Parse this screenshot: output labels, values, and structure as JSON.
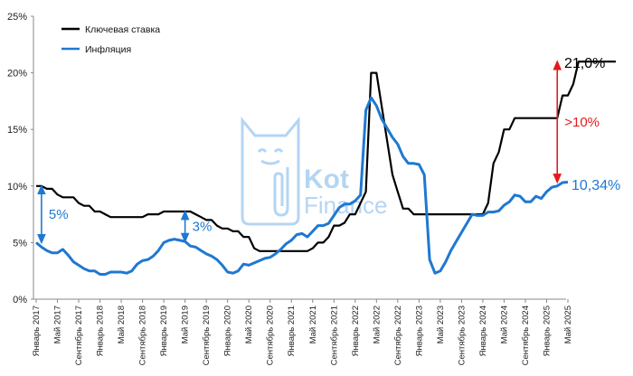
{
  "chart_data": {
    "type": "line",
    "ylim": [
      0,
      25
    ],
    "yticks": [
      "0%",
      "5%",
      "10%",
      "15%",
      "20%",
      "25%"
    ],
    "grid": false,
    "legend": "top-left",
    "x_tick_labels": [
      "Январь 2017",
      "Май 2017",
      "Сентябрь 2017",
      "Январь 2018",
      "Май 2018",
      "Сентябрь 2018",
      "Январь 2019",
      "Май 2019",
      "Сентябрь 2019",
      "Январь 2020",
      "Май 2020",
      "Сентябрь 2020",
      "Январь 2021",
      "Май 2021",
      "Сентябрь 2021",
      "Январь 2022",
      "Май 2022",
      "Сентябрь 2022",
      "Январь 2023",
      "Май 2023",
      "Сентябрь 2023",
      "Январь 2024",
      "Май 2024",
      "Сентябрь 2024",
      "Январь 2025",
      "Май 2025"
    ],
    "x_start": "2017-01",
    "series": [
      {
        "name": "Ключевая ставка",
        "color": "#000000",
        "values": [
          10,
          10,
          9.75,
          9.75,
          9.25,
          9,
          9,
          9,
          8.5,
          8.25,
          8.25,
          7.75,
          7.75,
          7.5,
          7.25,
          7.25,
          7.25,
          7.25,
          7.25,
          7.25,
          7.25,
          7.5,
          7.5,
          7.5,
          7.75,
          7.75,
          7.75,
          7.75,
          7.75,
          7.75,
          7.5,
          7.25,
          7,
          7,
          6.5,
          6.25,
          6.25,
          6,
          6,
          5.5,
          5.5,
          4.5,
          4.25,
          4.25,
          4.25,
          4.25,
          4.25,
          4.25,
          4.25,
          4.25,
          4.25,
          4.25,
          4.5,
          5,
          5,
          5.5,
          6.5,
          6.5,
          6.75,
          7.5,
          7.5,
          8.5,
          9.5,
          20,
          20,
          17,
          14,
          11,
          9.5,
          8,
          8,
          7.5,
          7.5,
          7.5,
          7.5,
          7.5,
          7.5,
          7.5,
          7.5,
          7.5,
          7.5,
          7.5,
          7.5,
          7.5,
          7.5,
          8.5,
          12,
          13,
          15,
          15,
          16,
          16,
          16,
          16,
          16,
          16,
          16,
          16,
          16,
          18,
          18,
          19,
          21,
          21,
          21,
          21,
          21,
          21,
          21,
          21
        ]
      },
      {
        "name": "Инфляция",
        "color": "#1f78d1",
        "values": [
          5,
          4.6,
          4.3,
          4.1,
          4.1,
          4.4,
          3.9,
          3.3,
          3,
          2.7,
          2.5,
          2.5,
          2.2,
          2.2,
          2.4,
          2.4,
          2.4,
          2.3,
          2.5,
          3.1,
          3.4,
          3.5,
          3.8,
          4.3,
          5,
          5.2,
          5.3,
          5.2,
          5.1,
          4.7,
          4.6,
          4.3,
          4,
          3.8,
          3.5,
          3,
          2.4,
          2.3,
          2.5,
          3.1,
          3,
          3.2,
          3.4,
          3.6,
          3.7,
          4,
          4.4,
          4.9,
          5.2,
          5.7,
          5.8,
          5.5,
          6,
          6.5,
          6.5,
          6.7,
          7.4,
          8.1,
          8.4,
          8.4,
          8.7,
          9.2,
          16.7,
          17.8,
          17.1,
          15.9,
          15.1,
          14.3,
          13.7,
          12.6,
          12,
          12,
          11.9,
          11,
          3.5,
          2.3,
          2.5,
          3.3,
          4.3,
          5.1,
          5.9,
          6.7,
          7.5,
          7.4,
          7.4,
          7.7,
          7.7,
          7.8,
          8.3,
          8.6,
          9.2,
          9.1,
          8.6,
          8.6,
          9.1,
          8.9,
          9.5,
          9.9,
          10,
          10.3,
          10.34
        ]
      }
    ],
    "annotations": [
      {
        "text": "5%",
        "color": "#1f78d1",
        "index": 1,
        "from": 5,
        "to": 10
      },
      {
        "text": "3%",
        "color": "#1f78d1",
        "index": 28,
        "from": 5.1,
        "to": 7.75
      },
      {
        "text": ">10%",
        "color": "#e31a1c",
        "index": 98,
        "from": 10.34,
        "to": 21
      }
    ],
    "end_labels": {
      "key_rate": "21,0%",
      "inflation": "10,34%"
    },
    "watermark": {
      "text_line1": "Kot",
      "text_line2": "Finance"
    }
  }
}
